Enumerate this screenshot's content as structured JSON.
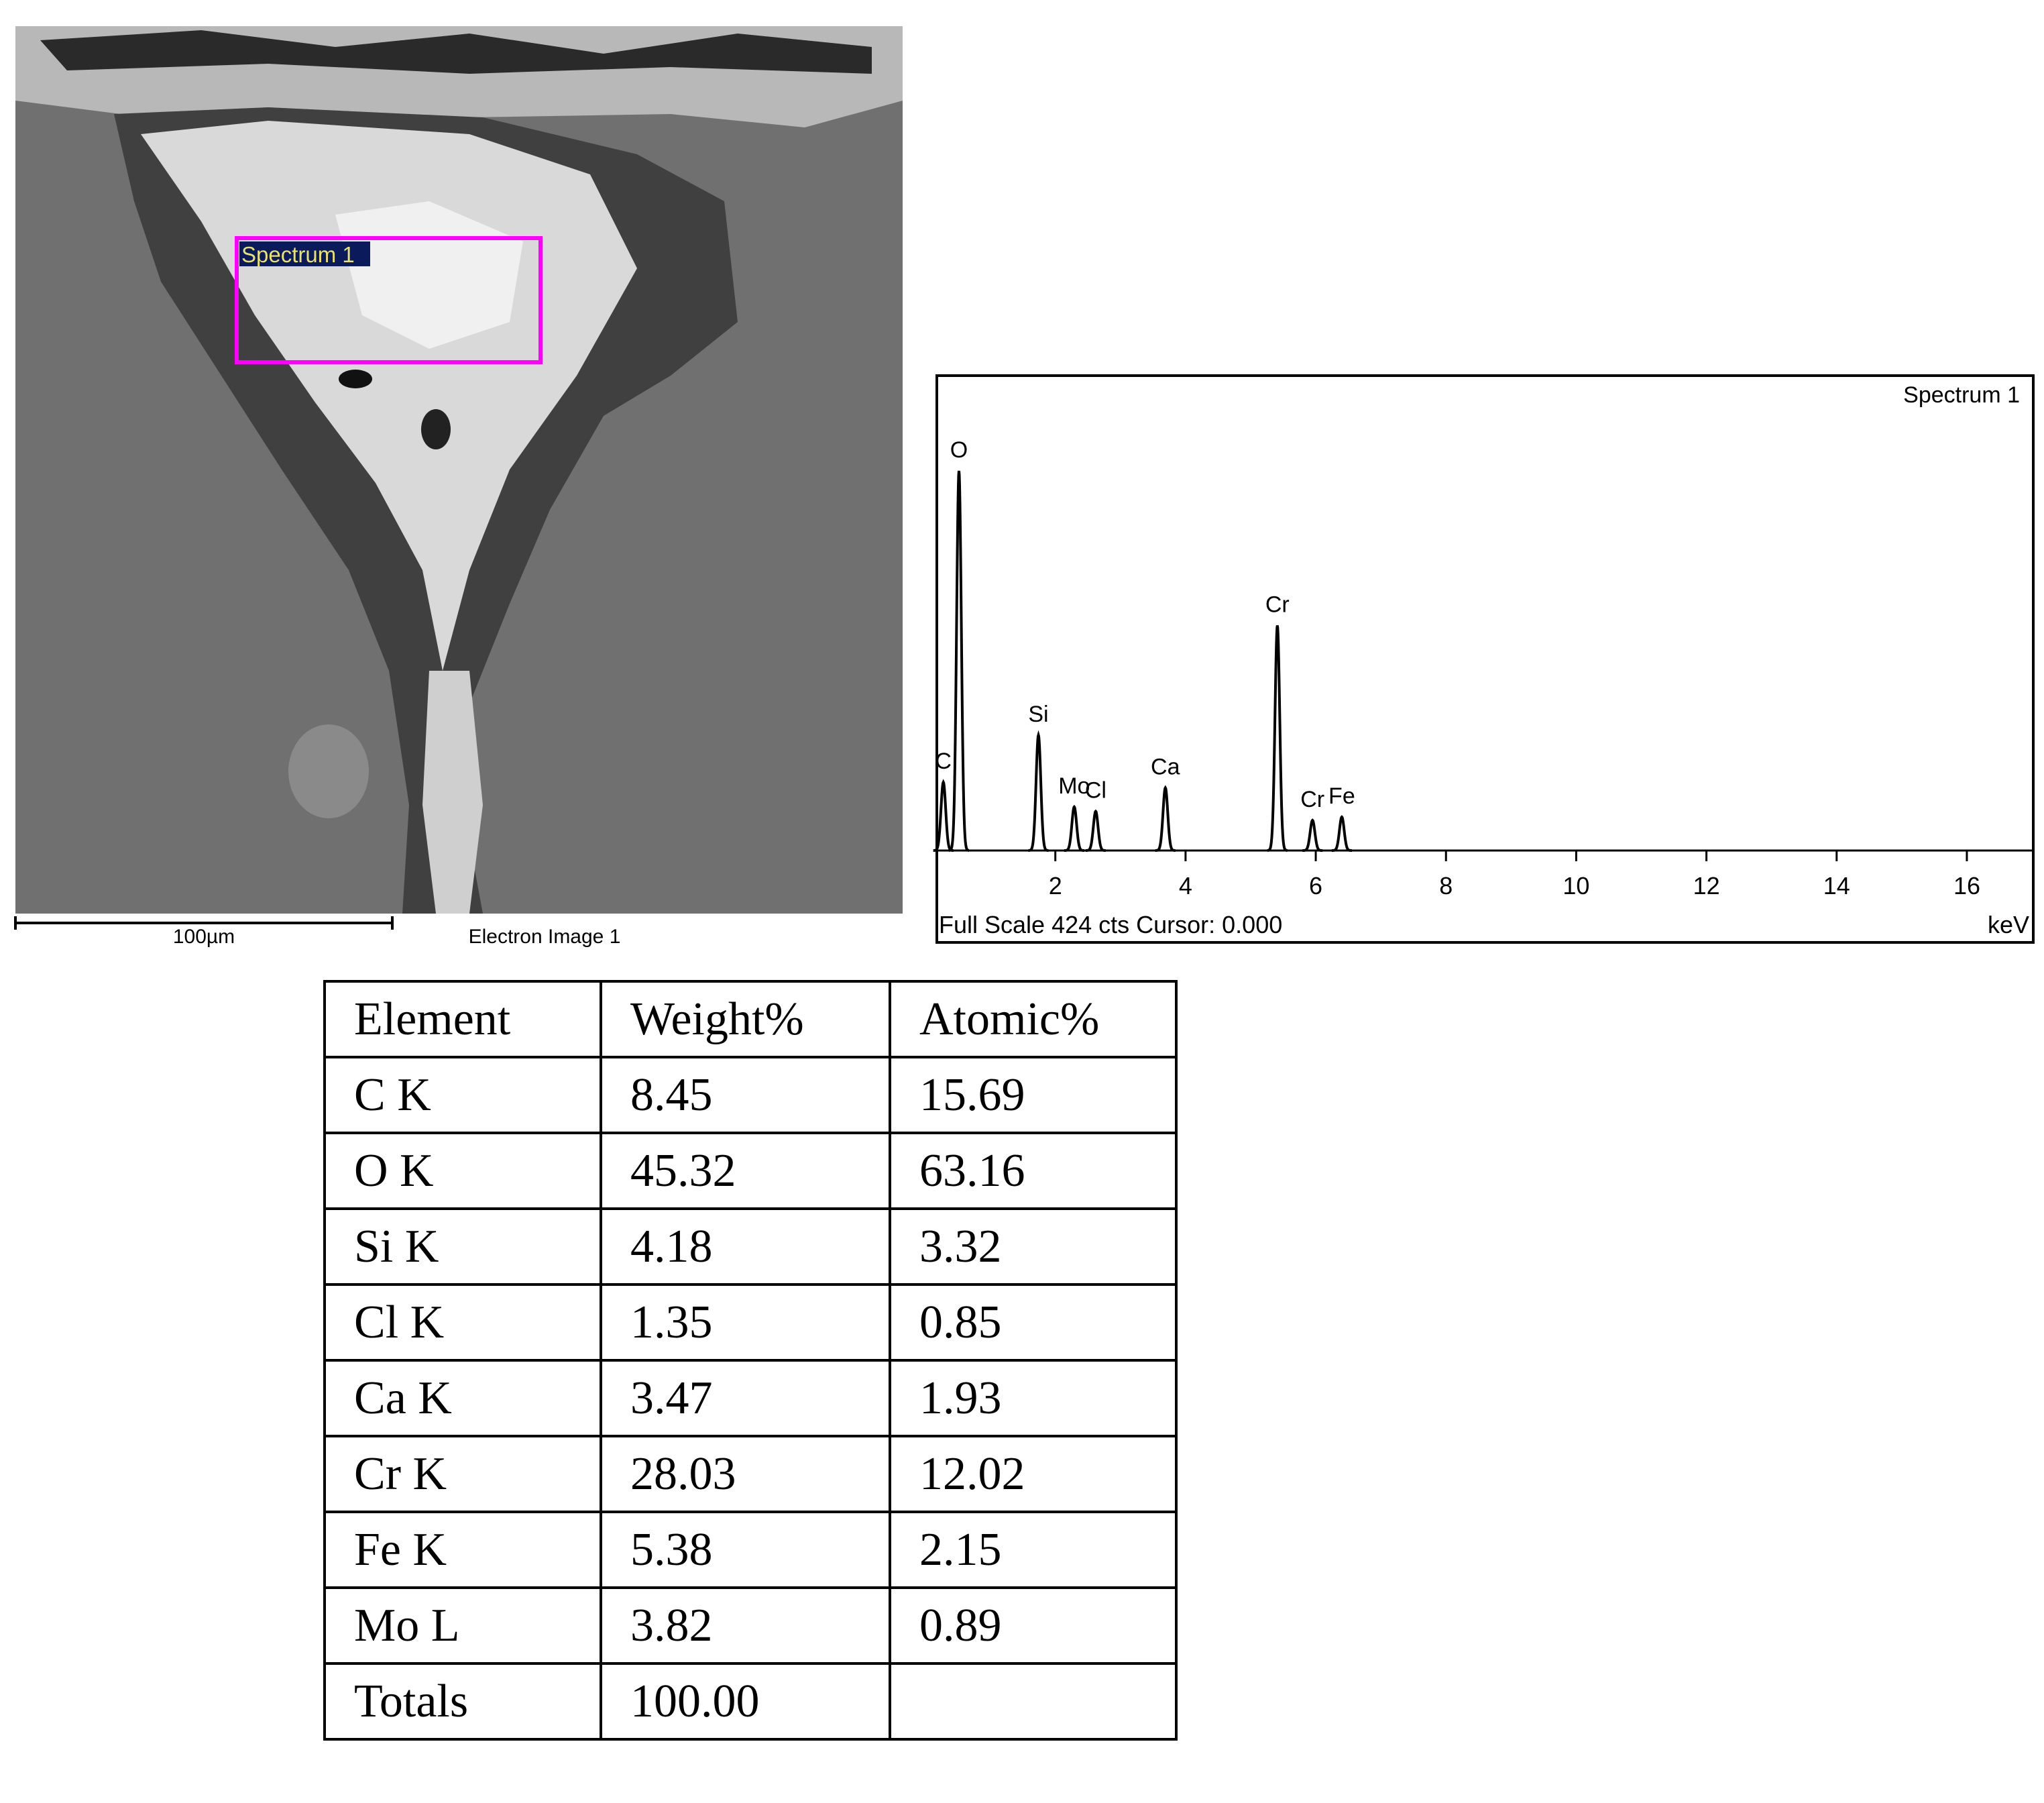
{
  "sem_image": {
    "region_label": "Spectrum 1",
    "scale_label": "100µm",
    "caption": "Electron Image 1"
  },
  "spectrum": {
    "title": "Spectrum 1",
    "footer": "Full Scale 424 cts Cursor: 0.000",
    "x_unit": "keV",
    "xlim": [
      0.18,
      17.02
    ],
    "ylim": [
      0,
      424
    ],
    "xticks": [
      2,
      4,
      6,
      8,
      10,
      12,
      14,
      16
    ],
    "peaks": [
      {
        "label": "C",
        "energy": 0.28,
        "counts": 61
      },
      {
        "label": "O",
        "energy": 0.52,
        "counts": 339
      },
      {
        "label": "Si",
        "energy": 1.74,
        "counts": 103
      },
      {
        "label": "Mo",
        "energy": 2.29,
        "counts": 39
      },
      {
        "label": "Cl",
        "energy": 2.62,
        "counts": 35
      },
      {
        "label": "Ca",
        "energy": 3.69,
        "counts": 56
      },
      {
        "label": "Cr",
        "energy": 5.41,
        "counts": 201
      },
      {
        "label": "Cr",
        "energy": 5.95,
        "counts": 27
      },
      {
        "label": "Fe",
        "energy": 6.4,
        "counts": 30
      }
    ]
  },
  "table": {
    "header": [
      "Element",
      "Weight%",
      "Atomic%"
    ],
    "rows": [
      [
        "C K",
        "8.45",
        "15.69"
      ],
      [
        "O K",
        "45.32",
        "63.16"
      ],
      [
        "Si K",
        "4.18",
        "3.32"
      ],
      [
        "Cl K",
        "1.35",
        "0.85"
      ],
      [
        "Ca K",
        "3.47",
        "1.93"
      ],
      [
        "Cr K",
        "28.03",
        "12.02"
      ],
      [
        "Fe K",
        "5.38",
        "2.15"
      ],
      [
        "Mo L",
        "3.82",
        "0.89"
      ],
      [
        "Totals",
        "100.00"
      ]
    ]
  }
}
